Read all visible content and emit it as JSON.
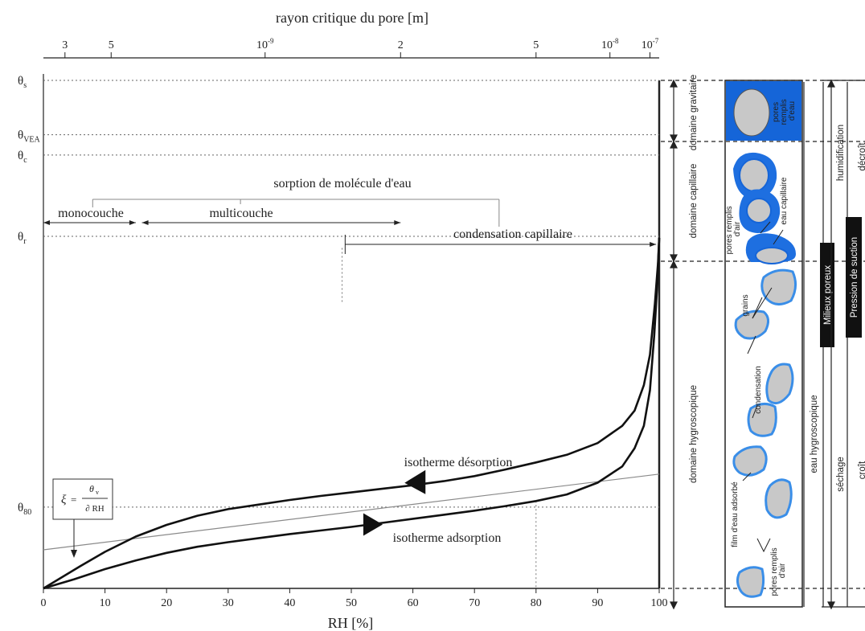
{
  "chart_data": {
    "type": "line",
    "xlabel": "RH [%]",
    "xlim": [
      0,
      100
    ],
    "x_ticks": [
      "0",
      "10",
      "20",
      "30",
      "40",
      "50",
      "60",
      "70",
      "80",
      "90",
      "100"
    ],
    "top_axis": {
      "label": "rayon critique du pore [m]",
      "ticks": [
        {
          "label": "3",
          "rh": 3.5
        },
        {
          "label": "5",
          "rh": 11
        },
        {
          "label": "10",
          "exp": "-9",
          "rh": 36
        },
        {
          "label": "2",
          "rh": 58
        },
        {
          "label": "5",
          "rh": 80
        },
        {
          "label": "10",
          "exp": "-8",
          "rh": 92
        },
        {
          "label": "10",
          "exp": "-7",
          "rh": 98.5
        }
      ]
    },
    "y_levels": [
      {
        "main": "θ",
        "sub": "s",
        "y": 100
      },
      {
        "main": "θ",
        "sub": "VEA",
        "y": 89.3
      },
      {
        "main": "θ",
        "sub": "c",
        "y": 85.3
      },
      {
        "main": "θ",
        "sub": "r",
        "y": 69.3
      },
      {
        "main": "θ",
        "sub": "80",
        "y": 16
      }
    ],
    "series": [
      {
        "name": "isotherme désorption",
        "points": [
          [
            0,
            0
          ],
          [
            3,
            2.2
          ],
          [
            6,
            4.4
          ],
          [
            10,
            7.2
          ],
          [
            15,
            10.2
          ],
          [
            20,
            12.5
          ],
          [
            25,
            14.3
          ],
          [
            30,
            15.6
          ],
          [
            35,
            16.5
          ],
          [
            40,
            17.4
          ],
          [
            45,
            18.2
          ],
          [
            50,
            18.9
          ],
          [
            55,
            19.6
          ],
          [
            60,
            20.3
          ],
          [
            65,
            21.1
          ],
          [
            70,
            22.1
          ],
          [
            75,
            23.4
          ],
          [
            80,
            24.8
          ],
          [
            85,
            26.3
          ],
          [
            90,
            28.6
          ],
          [
            94,
            32
          ],
          [
            96,
            35
          ],
          [
            97.5,
            40
          ],
          [
            98.5,
            46
          ],
          [
            99.3,
            56
          ],
          [
            99.8,
            64
          ],
          [
            100,
            69
          ]
        ]
      },
      {
        "name": "isotherme adsorption",
        "points": [
          [
            0,
            0
          ],
          [
            5,
            1.8
          ],
          [
            10,
            3.8
          ],
          [
            15,
            5.5
          ],
          [
            20,
            7
          ],
          [
            25,
            8.2
          ],
          [
            30,
            9.1
          ],
          [
            35,
            9.9
          ],
          [
            40,
            10.7
          ],
          [
            45,
            11.4
          ],
          [
            50,
            12.1
          ],
          [
            55,
            12.9
          ],
          [
            60,
            13.7
          ],
          [
            65,
            14.5
          ],
          [
            70,
            15.3
          ],
          [
            75,
            16.2
          ],
          [
            80,
            17.2
          ],
          [
            85,
            18.5
          ],
          [
            90,
            20.8
          ],
          [
            94,
            24
          ],
          [
            96,
            27.6
          ],
          [
            97.5,
            32
          ],
          [
            98.5,
            39
          ],
          [
            99.2,
            50
          ],
          [
            99.7,
            60
          ],
          [
            100,
            69
          ]
        ]
      }
    ],
    "tangent_line": [
      [
        0,
        7.6
      ],
      [
        100,
        22.5
      ]
    ],
    "tangent_formula": {
      "xi": "ξ",
      "num": "θ",
      "num_sub": "v",
      "den": "∂ RH",
      "eq": "="
    },
    "annotations": {
      "sorption": "sorption de molécule d'eau",
      "monocouche": "monocouche",
      "multicouche": "multicouche",
      "condensation": "condensation capillaire",
      "desorption": "isotherme désorption",
      "adsorption": "isotherme adsorption"
    },
    "bands": {
      "monocouche": [
        0,
        15
      ],
      "multicouche": [
        16,
        58
      ],
      "condensation": [
        49,
        99.5
      ]
    },
    "arrow_markers": {
      "desorption_rh": 61,
      "adsorption_rh": 53
    },
    "v_markers": [
      48.5,
      80
    ]
  },
  "side_panel": {
    "domains": [
      "domaine gravitaire",
      "domaine capillaire",
      "domaine hygroscopique"
    ],
    "labels": {
      "pores_remplis_eau": [
        "pores",
        "remplis",
        "d'eau"
      ],
      "pores_remplis_air_top": [
        "pores remplis",
        "d'air"
      ],
      "eau_capillaire": "eau capillaire",
      "grains": "grains",
      "condensation": "condensation",
      "film_eau_adsorbe": "film d'eau adsorbé",
      "pores_remplis_air_bottom": [
        "pores remplis",
        "d'air"
      ]
    },
    "columns": {
      "eau_hygroscopique": "eau hygroscopique",
      "milieux_poreux": "Milieux poreux",
      "humidification": "humidification",
      "sechage": "séchage",
      "pression_de_suction": "Pression de suction",
      "cut_right_top": "décroît",
      "cut_right_bottom": "croît"
    },
    "colors": {
      "water_blue": "#1565d8",
      "film_blue": "#3a8ee8",
      "grain_grey": "#c8c8c8",
      "label_box": "#111111"
    }
  }
}
